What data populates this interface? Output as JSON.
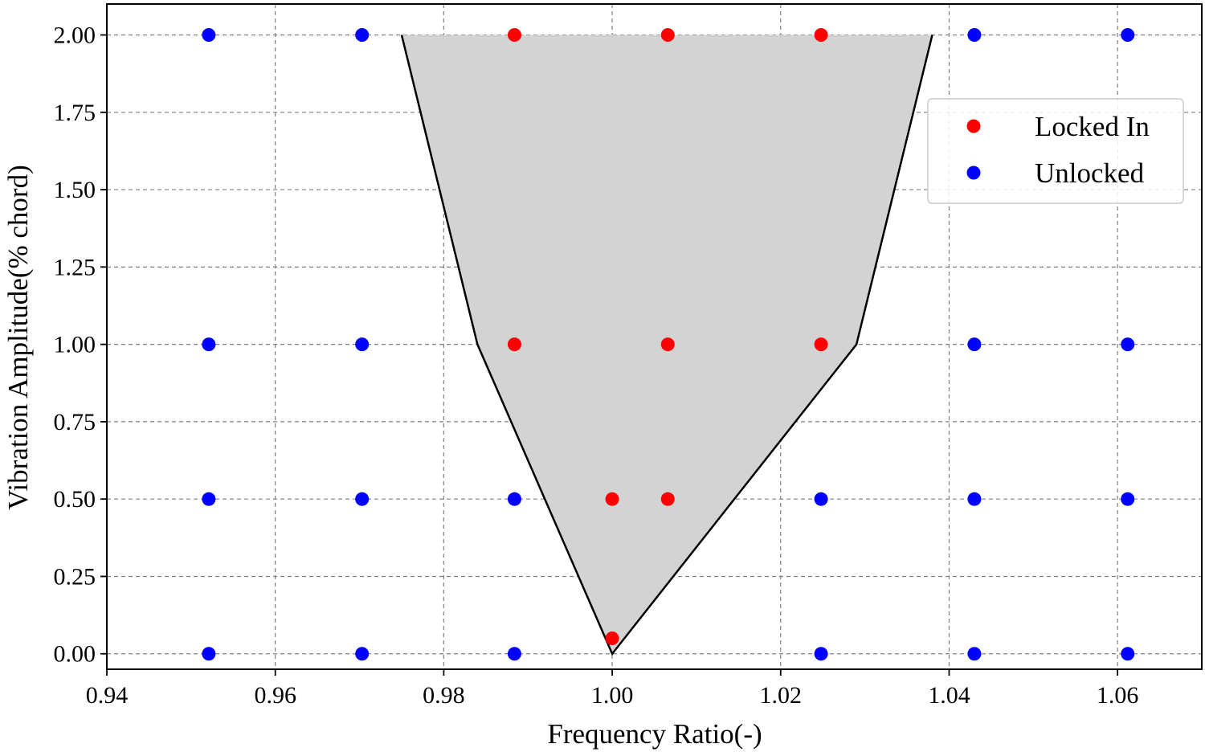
{
  "chart_data": {
    "type": "scatter",
    "xlabel": "Frequency Ratio(-)",
    "ylabel": "Vibration Amplitude(% chord)",
    "xlim": [
      0.94,
      1.07
    ],
    "ylim": [
      -0.05,
      2.1
    ],
    "xticks": [
      0.94,
      0.96,
      0.98,
      1.0,
      1.02,
      1.04,
      1.06
    ],
    "xtick_labels": [
      "0.94",
      "0.96",
      "0.98",
      "1.00",
      "1.02",
      "1.04",
      "1.06"
    ],
    "yticks": [
      0.0,
      0.25,
      0.5,
      0.75,
      1.0,
      1.25,
      1.5,
      1.75,
      2.0
    ],
    "ytick_labels": [
      "0.00",
      "0.25",
      "0.50",
      "0.75",
      "1.00",
      "1.25",
      "1.50",
      "1.75",
      "2.00"
    ],
    "grid": true,
    "legend_position": "top-right",
    "series": [
      {
        "name": "Locked In",
        "color": "#ff0000",
        "points": [
          [
            0.9884,
            2.0
          ],
          [
            1.0066,
            2.0
          ],
          [
            1.0248,
            2.0
          ],
          [
            0.9884,
            1.0
          ],
          [
            1.0066,
            1.0
          ],
          [
            1.0248,
            1.0
          ],
          [
            1.0,
            0.5
          ],
          [
            1.0066,
            0.5
          ],
          [
            1.0,
            0.05
          ]
        ]
      },
      {
        "name": "Unlocked",
        "color": "#0000ff",
        "points": [
          [
            0.9521,
            2.0
          ],
          [
            0.9703,
            2.0
          ],
          [
            1.043,
            2.0
          ],
          [
            1.0612,
            2.0
          ],
          [
            0.9521,
            1.0
          ],
          [
            0.9703,
            1.0
          ],
          [
            1.043,
            1.0
          ],
          [
            1.0612,
            1.0
          ],
          [
            0.9521,
            0.5
          ],
          [
            0.9703,
            0.5
          ],
          [
            0.9884,
            0.5
          ],
          [
            1.0248,
            0.5
          ],
          [
            1.043,
            0.5
          ],
          [
            1.0612,
            0.5
          ],
          [
            0.9521,
            0.0
          ],
          [
            0.9703,
            0.0
          ],
          [
            0.9884,
            0.0
          ],
          [
            1.0248,
            0.0
          ],
          [
            1.043,
            0.0
          ],
          [
            1.0612,
            0.0
          ]
        ]
      }
    ],
    "lock_in_region": {
      "fill_color": "#d3d3d3",
      "edge_color": "#000000",
      "boundary": [
        [
          0.975,
          2.0
        ],
        [
          0.984,
          1.0
        ],
        [
          1.0,
          0.0
        ],
        [
          1.029,
          1.0
        ],
        [
          1.038,
          2.0
        ]
      ]
    }
  }
}
